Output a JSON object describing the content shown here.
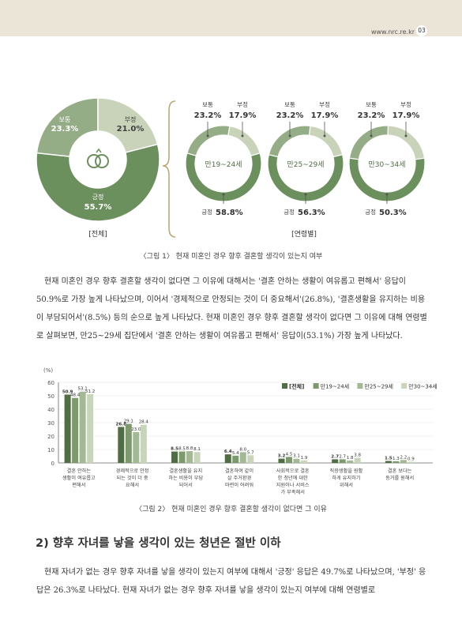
{
  "header": {
    "site": "www.nrc.re.kr",
    "page_number": "03"
  },
  "figure1": {
    "caption": "〈그림 1〉 현재 미혼인 경우 향후 결혼할 생각이 있는지 여부",
    "overall": {
      "label": "[전체]",
      "segments": [
        {
          "name": "긍정",
          "value_text": "55.7%",
          "value": 55.7,
          "color": "#6b8f5d"
        },
        {
          "name": "보통",
          "value_text": "23.3%",
          "value": 23.3,
          "color": "#95ad87"
        },
        {
          "name": "부정",
          "value_text": "21.0%",
          "value": 21.0,
          "color": "#c8d3b9"
        }
      ]
    },
    "by_age_label": "[연령별]",
    "by_age": [
      {
        "center": "만19~24세",
        "pos_label": "긍정",
        "pos_value": "58.8%",
        "pos": 58.8,
        "neu_label": "보통",
        "neu_value": "23.2%",
        "neu": 23.2,
        "neg_label": "부정",
        "neg_value": "17.9%",
        "neg": 17.9
      },
      {
        "center": "만25~29세",
        "pos_label": "긍정",
        "pos_value": "56.3%",
        "pos": 56.3,
        "neu_label": "보통",
        "neu_value": "23.2%",
        "neu": 23.2,
        "neg_label": "부정",
        "neg_value": "17.9%",
        "neg": 17.9
      },
      {
        "center": "만30~34세",
        "pos_label": "긍정",
        "pos_value": "50.3%",
        "pos": 50.3,
        "neu_label": "보통",
        "neu_value": "23.2%",
        "neu": 23.2,
        "neg_label": "부정",
        "neg_value": "17.9%",
        "neg": 17.9
      }
    ]
  },
  "paragraph1": "현재 미혼인 경우 향후 결혼할 생각이 없다면 그 이유에 대해서는 '결혼 안하는 생활이 여유롭고 편해서' 응답이 50.9%로 가장 높게 나타났으며, 이어서 '경제적으로 안정되는 것이 더 중요해서'(26.8%), '결혼생활을 유지하는 비용이 부담되어서'(8.5%) 등의 순으로 높게 나타났다. 현재 미혼인 경우 향후 결혼할 생각이 없다면 그 이유에 대해 연령별로 살펴보면, 만25~29세 집단에서 '결혼 안하는 생활이 여유롭고 편해서' 응답이(53.1%) 가장 높게 나타났다.",
  "chart_data": {
    "type": "bar",
    "unit_label": "(%)",
    "ylim": [
      0,
      60
    ],
    "yticks": [
      0,
      10,
      20,
      30,
      40,
      50,
      60
    ],
    "grid": true,
    "legend_position": "top-right",
    "categories": [
      [
        "결혼 안하는",
        "생활이 여유롭고",
        "편해서"
      ],
      [
        "경제적으로 안정",
        "되는 것이 더 중",
        "요해서"
      ],
      [
        "결혼생활을 유지",
        "하는 비용이 부담",
        "되어서"
      ],
      [
        "결혼하여 같이",
        "살 주거환경",
        "마련이 어려워"
      ],
      [
        "사회적으로 결혼",
        "한 청년에 대한",
        "지원이나 서비스",
        "가 부족해서"
      ],
      [
        "직장생활을 원활",
        "하게 유지하기",
        "위해서"
      ],
      [
        "결혼 보다는",
        "동거를 원해서"
      ]
    ],
    "series": [
      {
        "name": "[전체]",
        "color": "#4f6e43",
        "values": [
          50.9,
          26.8,
          8.5,
          6.4,
          3.2,
          2.7,
          1.5
        ]
      },
      {
        "name": "만19~24세",
        "color": "#7d9a6c",
        "values": [
          48.4,
          29.1,
          8.5,
          5.4,
          4.5,
          2.7,
          1.3
        ]
      },
      {
        "name": "만25~29세",
        "color": "#a3b894",
        "values": [
          53.1,
          23.0,
          8.8,
          8.0,
          3.1,
          1.8,
          2.2
        ]
      },
      {
        "name": "만30~34세",
        "color": "#c9d5bb",
        "values": [
          51.2,
          28.4,
          8.1,
          5.7,
          1.9,
          3.8,
          0.9
        ]
      }
    ],
    "value_labels": [
      [
        "50.9",
        "26.8",
        "8.5",
        "6.4",
        "3.2",
        "2.7",
        "1.5"
      ],
      [
        "48.4",
        "29.1",
        "8.5",
        "5.4",
        "4.5",
        "2.7",
        "1.3"
      ],
      [
        "53.1",
        "23.0",
        "8.8",
        "8.0",
        "3.1",
        "1.8",
        "2.2"
      ],
      [
        "51.2",
        "28.4",
        "8.1",
        "5.7",
        "1.9",
        "3.8",
        "0.9"
      ]
    ]
  },
  "figure2_caption": "〈그림 2〉 현재 미혼인 경우 향후 결혼할 생각이 없다면 그 이유",
  "section_heading": "2) 향후 자녀를 낳을 생각이 있는 청년은 절반 이하",
  "paragraph2": "현재 자녀가 없는 경우 향후 자녀를 낳을 생각이 있는지 여부에 대해서 '긍정' 응답은 49.7%로 나타났으며, '부정' 응답은 26.3%로 나타났다. 현재 자녀가 없는 경우 향후 자녀를 낳을 생각이 있는지 여부에 대해 연령별로"
}
